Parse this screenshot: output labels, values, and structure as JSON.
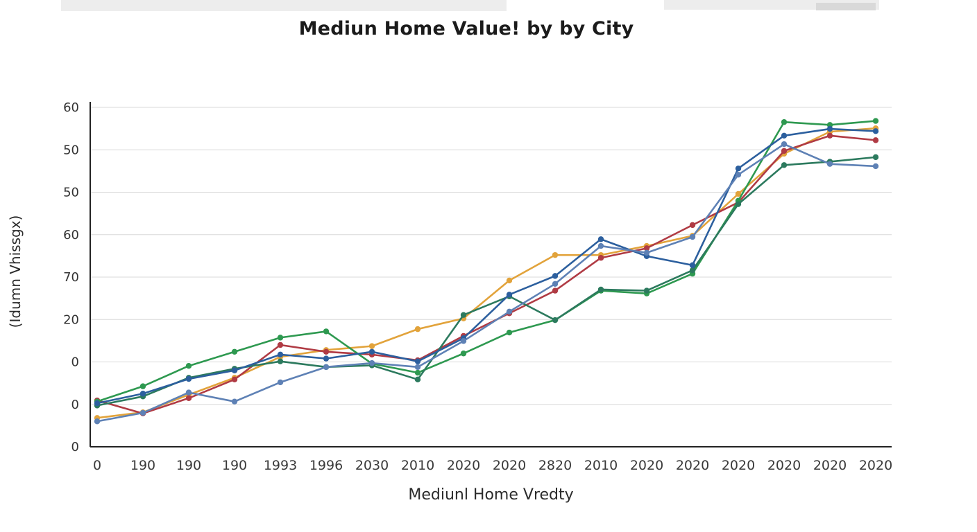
{
  "header": {
    "title": "Mediun Home Value! by by City"
  },
  "chart_data": {
    "type": "line",
    "title": "Mediun Home Value! by by City",
    "xlabel": "Mediunl Home Vredty",
    "ylabel": "(Idumn Vhissgx)",
    "x_tick_labels": [
      "0",
      "190",
      "190",
      "190",
      "1993",
      "1996",
      "2030",
      "2010",
      "2020",
      "2020",
      "2820",
      "2010",
      "2020",
      "2020",
      "2020",
      "2020",
      "2020",
      "2020"
    ],
    "y_tick_labels_bottom_to_top": [
      "0",
      "0",
      "0",
      "20",
      "70",
      "60",
      "50",
      "50",
      "60"
    ],
    "ylim": [
      0,
      60
    ],
    "grid": "horizontal-only",
    "legend_position": "none",
    "axis_color": "#222222",
    "gridline_color": "#d8d8d8",
    "series": [
      {
        "name": "series-orange",
        "color": "#E2A33B",
        "values": [
          5.1,
          6.1,
          9.2,
          12.2,
          15.9,
          17.1,
          17.8,
          20.8,
          22.7,
          29.4,
          33.9,
          33.9,
          35.5,
          37.3,
          44.7,
          51.8,
          55.7,
          56.3
        ]
      },
      {
        "name": "series-red",
        "color": "#B03B44",
        "values": [
          8.2,
          5.9,
          8.6,
          11.9,
          18.0,
          16.8,
          16.3,
          15.3,
          19.6,
          23.6,
          27.6,
          33.4,
          35.1,
          39.2,
          43.2,
          52.3,
          55.0,
          54.2
        ]
      },
      {
        "name": "series-green",
        "color": "#2E9950",
        "values": [
          8.0,
          10.7,
          14.3,
          16.8,
          19.3,
          20.4,
          14.7,
          13.1,
          16.5,
          20.2,
          22.4,
          27.6,
          27.1,
          30.6,
          43.5,
          57.4,
          56.9,
          57.6
        ]
      },
      {
        "name": "series-teal",
        "color": "#2C7A5E",
        "values": [
          7.3,
          8.9,
          12.2,
          13.8,
          15.1,
          14.1,
          14.4,
          11.9,
          23.3,
          26.6,
          22.4,
          27.8,
          27.6,
          31.2,
          42.9,
          49.8,
          50.4,
          51.2
        ]
      },
      {
        "name": "series-blue",
        "color": "#2C5F9E",
        "values": [
          7.7,
          9.4,
          12.0,
          13.5,
          16.3,
          15.6,
          16.8,
          15.1,
          19.2,
          26.9,
          30.2,
          36.7,
          33.7,
          32.1,
          49.2,
          55.0,
          56.2,
          55.8
        ]
      },
      {
        "name": "series-slate",
        "color": "#5E81B5",
        "values": [
          4.5,
          6.0,
          9.6,
          8.0,
          11.4,
          14.1,
          14.8,
          14.1,
          18.7,
          23.9,
          28.8,
          35.5,
          34.3,
          37.1,
          48.1,
          53.5,
          50.0,
          49.6
        ]
      }
    ]
  }
}
